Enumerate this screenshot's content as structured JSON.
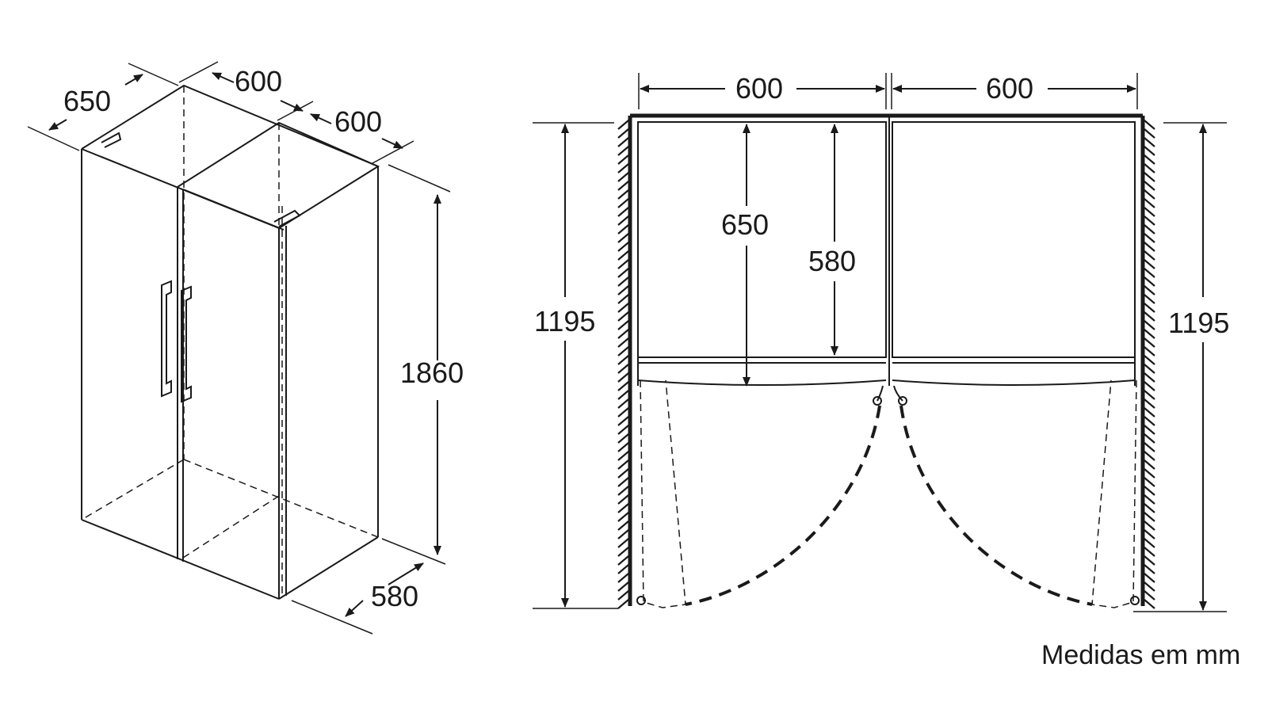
{
  "caption": "Medidas em mm",
  "isometric": {
    "depth_label": "650",
    "width_left_label": "600",
    "width_right_label": "600",
    "height_label": "1860",
    "door_depth_label": "580"
  },
  "plan": {
    "left_width_label": "600",
    "right_width_label": "600",
    "left_clearance_label": "1195",
    "right_clearance_label": "1195",
    "depth_label": "650",
    "body_depth_label": "580"
  }
}
